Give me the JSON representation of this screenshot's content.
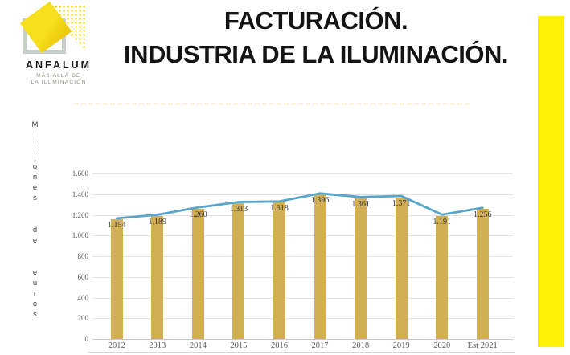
{
  "header": {
    "title_line1": "FACTURACIÓN.",
    "title_line2": "INDUSTRIA DE LA ILUMINACIÓN."
  },
  "logo": {
    "brand": "ANFALUM",
    "tagline_line1": "MÁS ALLÁ DE",
    "tagline_line2": "LA ILUMINACIÓN",
    "yellow": "#F3D70C",
    "gray": "#C8CFC8"
  },
  "decor": {
    "accent_bar_color": "#FFF104"
  },
  "chart_data": {
    "type": "bar",
    "combo": "bar+line",
    "title": "",
    "xlabel": "",
    "ylabel": "Millones de euros",
    "categories": [
      "2012",
      "2013",
      "2014",
      "2015",
      "2016",
      "2017",
      "2018",
      "2019",
      "2020",
      "Est 2021"
    ],
    "series": [
      {
        "type": "bar",
        "color": "#D2AF53",
        "values": [
          1154,
          1189,
          1260,
          1313,
          1318,
          1396,
          1361,
          1371,
          1191,
          1256
        ]
      },
      {
        "type": "line",
        "color": "#58A5CB",
        "values": [
          1154,
          1189,
          1260,
          1313,
          1318,
          1396,
          1361,
          1371,
          1191,
          1256
        ]
      }
    ],
    "data_labels": [
      "1.154",
      "1.189",
      "1.260",
      "1.313",
      "1.318",
      "1.396",
      "1.361",
      "1.371",
      "1.191",
      "1.256"
    ],
    "ylim": [
      0,
      1600
    ],
    "ytick_labels": [
      "0",
      "200",
      "400",
      "600",
      "800",
      "1.000",
      "1.200",
      "1.400",
      "1.600"
    ],
    "grid": true,
    "legend": "none"
  }
}
